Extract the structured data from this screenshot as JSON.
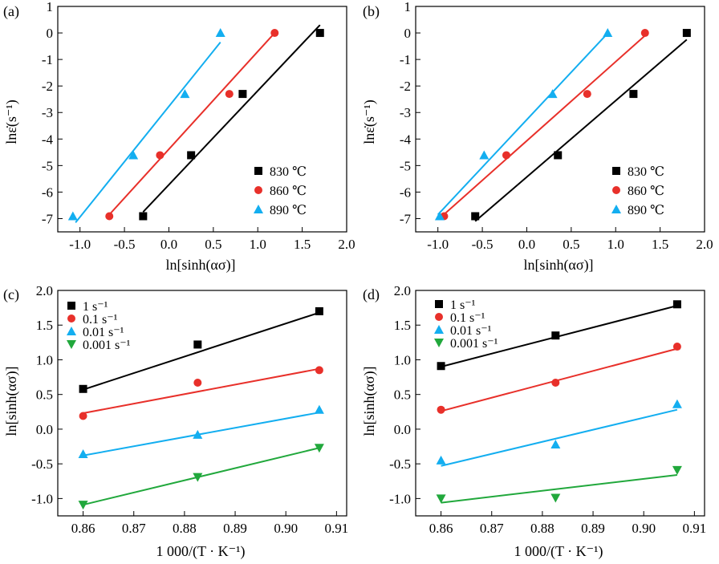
{
  "chart_data": [
    {
      "type": "scatter",
      "panel_label": "(a)",
      "xlabel": "ln[sinh(ασ)]",
      "ylabel": "lnε̇(s⁻¹)",
      "xlim": [
        -1.25,
        2.0
      ],
      "ylim": [
        -7.5,
        1.0
      ],
      "xticks": [
        -1.0,
        -0.5,
        0.0,
        0.5,
        1.0,
        1.5,
        2.0
      ],
      "xtick_labels": [
        "-1.0",
        "-0.5",
        "0.0",
        "0.5",
        "1.0",
        "1.5",
        "2.0"
      ],
      "yticks": [
        -7,
        -6,
        -5,
        -4,
        -3,
        -2,
        -1,
        0,
        1
      ],
      "ytick_labels": [
        "-7",
        "-6",
        "-5",
        "-4",
        "-3",
        "-2",
        "-1",
        "0",
        "1"
      ],
      "legend_position": "bottom-right",
      "series": [
        {
          "name": "830 ℃",
          "color": "#000000",
          "marker": "square",
          "x": [
            -0.29,
            0.25,
            0.83,
            1.7
          ],
          "y": [
            -6.91,
            -4.61,
            -2.3,
            0.0
          ],
          "fit": {
            "x": [
              -0.29,
              1.7
            ],
            "y": [
              -6.75,
              0.3
            ]
          }
        },
        {
          "name": "860 ℃",
          "color": "#e8302a",
          "marker": "circle",
          "x": [
            -0.67,
            -0.1,
            0.68,
            1.19
          ],
          "y": [
            -6.91,
            -4.61,
            -2.3,
            0.0
          ],
          "fit": {
            "x": [
              -0.67,
              1.19
            ],
            "y": [
              -6.85,
              0.0
            ]
          }
        },
        {
          "name": "890 ℃",
          "color": "#13aef0",
          "marker": "triangle-up",
          "x": [
            -1.08,
            -0.4,
            0.18,
            0.58
          ],
          "y": [
            -6.91,
            -4.61,
            -2.3,
            0.0
          ],
          "fit": {
            "x": [
              -1.05,
              0.58
            ],
            "y": [
              -7.15,
              -0.35
            ]
          }
        }
      ]
    },
    {
      "type": "scatter",
      "panel_label": "(b)",
      "xlabel": "ln[sinh(ασ)]",
      "ylabel": "lnε̇(s⁻¹)",
      "xlim": [
        -1.25,
        2.0
      ],
      "ylim": [
        -7.5,
        1.0
      ],
      "xticks": [
        -1.0,
        -0.5,
        0.0,
        0.5,
        1.0,
        1.5,
        2.0
      ],
      "xtick_labels": [
        "-1.0",
        "-0.5",
        "0.0",
        "0.5",
        "1.0",
        "1.5",
        "2.0"
      ],
      "yticks": [
        -7,
        -6,
        -5,
        -4,
        -3,
        -2,
        -1,
        0,
        1
      ],
      "ytick_labels": [
        "-7",
        "-6",
        "-5",
        "-4",
        "-3",
        "-2",
        "-1",
        "0",
        "1"
      ],
      "legend_position": "bottom-right",
      "series": [
        {
          "name": "830 ℃",
          "color": "#000000",
          "marker": "square",
          "x": [
            -0.58,
            0.35,
            1.2,
            1.8
          ],
          "y": [
            -6.91,
            -4.61,
            -2.3,
            0.0
          ],
          "fit": {
            "x": [
              -0.58,
              1.8
            ],
            "y": [
              -7.1,
              -0.25
            ]
          }
        },
        {
          "name": "860 ℃",
          "color": "#e8302a",
          "marker": "circle",
          "x": [
            -0.93,
            -0.23,
            0.68,
            1.33
          ],
          "y": [
            -6.91,
            -4.61,
            -2.3,
            0.0
          ],
          "fit": {
            "x": [
              -0.95,
              1.33
            ],
            "y": [
              -6.9,
              -0.1
            ]
          }
        },
        {
          "name": "890 ℃",
          "color": "#13aef0",
          "marker": "triangle-up",
          "x": [
            -0.98,
            -0.48,
            0.29,
            0.91
          ],
          "y": [
            -6.91,
            -4.61,
            -2.3,
            0.0
          ],
          "fit": {
            "x": [
              -1.0,
              0.9
            ],
            "y": [
              -6.85,
              -0.05
            ]
          }
        }
      ]
    },
    {
      "type": "scatter",
      "panel_label": "(c)",
      "xlabel": "1 000/(T · K⁻¹)",
      "ylabel": "ln[sinh(ασ)]",
      "xlim": [
        0.855,
        0.912
      ],
      "ylim": [
        -1.25,
        2.0
      ],
      "xticks": [
        0.86,
        0.87,
        0.88,
        0.89,
        0.9,
        0.91
      ],
      "xtick_labels": [
        "0.86",
        "0.87",
        "0.88",
        "0.89",
        "0.90",
        "0.91"
      ],
      "yticks": [
        -1.0,
        -0.5,
        0.0,
        0.5,
        1.0,
        1.5,
        2.0
      ],
      "ytick_labels": [
        "-1.0",
        "-0.5",
        "0.0",
        "0.5",
        "1.0",
        "1.5",
        "2.0"
      ],
      "legend_position": "top-left",
      "series": [
        {
          "name": "1 s⁻¹",
          "color": "#000000",
          "marker": "square",
          "x": [
            0.86,
            0.8826,
            0.9066
          ],
          "y": [
            0.58,
            1.22,
            1.7
          ],
          "fit": {
            "x": [
              0.86,
              0.9066
            ],
            "y": [
              0.57,
              1.68
            ]
          }
        },
        {
          "name": "0.1 s⁻¹",
          "color": "#e8302a",
          "marker": "circle",
          "x": [
            0.86,
            0.8826,
            0.9066
          ],
          "y": [
            0.19,
            0.67,
            0.85
          ],
          "fit": {
            "x": [
              0.86,
              0.9066
            ],
            "y": [
              0.23,
              0.87
            ]
          }
        },
        {
          "name": "0.01 s⁻¹",
          "color": "#13aef0",
          "marker": "triangle-up",
          "x": [
            0.86,
            0.8826,
            0.9066
          ],
          "y": [
            -0.36,
            -0.08,
            0.28
          ],
          "fit": {
            "x": [
              0.86,
              0.9066
            ],
            "y": [
              -0.38,
              0.24
            ]
          }
        },
        {
          "name": "0.001 s⁻¹",
          "color": "#21a83c",
          "marker": "triangle-down",
          "x": [
            0.86,
            0.8826,
            0.9066
          ],
          "y": [
            -1.09,
            -0.69,
            -0.27
          ],
          "fit": {
            "x": [
              0.86,
              0.9066
            ],
            "y": [
              -1.09,
              -0.27
            ]
          }
        }
      ]
    },
    {
      "type": "scatter",
      "panel_label": "(d)",
      "xlabel": "1 000/(T · K⁻¹)",
      "ylabel": "ln[sinh(ασ)]",
      "xlim": [
        0.855,
        0.912
      ],
      "ylim": [
        -1.25,
        2.0
      ],
      "xticks": [
        0.86,
        0.87,
        0.88,
        0.89,
        0.9,
        0.91
      ],
      "xtick_labels": [
        "0.86",
        "0.87",
        "0.88",
        "0.89",
        "0.90",
        "0.91"
      ],
      "yticks": [
        -1.0,
        -0.5,
        0.0,
        0.5,
        1.0,
        1.5,
        2.0
      ],
      "ytick_labels": [
        "-1.0",
        "-0.5",
        "0.0",
        "0.5",
        "1.0",
        "1.5",
        "2.0"
      ],
      "legend_position": "top-left",
      "series": [
        {
          "name": "1 s⁻¹",
          "color": "#000000",
          "marker": "square",
          "x": [
            0.86,
            0.8826,
            0.9066
          ],
          "y": [
            0.91,
            1.35,
            1.8
          ],
          "fit": {
            "x": [
              0.86,
              0.9066
            ],
            "y": [
              0.9,
              1.78
            ]
          }
        },
        {
          "name": "0.1 s⁻¹",
          "color": "#e8302a",
          "marker": "circle",
          "x": [
            0.86,
            0.8826,
            0.9066
          ],
          "y": [
            0.28,
            0.67,
            1.19
          ],
          "fit": {
            "x": [
              0.86,
              0.9066
            ],
            "y": [
              0.26,
              1.16
            ]
          }
        },
        {
          "name": "0.01 s⁻¹",
          "color": "#13aef0",
          "marker": "triangle-up",
          "x": [
            0.86,
            0.8826,
            0.9066
          ],
          "y": [
            -0.45,
            -0.22,
            0.36
          ],
          "fit": {
            "x": [
              0.86,
              0.9066
            ],
            "y": [
              -0.53,
              0.28
            ]
          }
        },
        {
          "name": "0.001 s⁻¹",
          "color": "#21a83c",
          "marker": "triangle-down",
          "x": [
            0.86,
            0.8826,
            0.9066
          ],
          "y": [
            -1.0,
            -0.99,
            -0.59
          ],
          "fit": {
            "x": [
              0.86,
              0.9066
            ],
            "y": [
              -1.06,
              -0.66
            ]
          }
        }
      ]
    }
  ]
}
